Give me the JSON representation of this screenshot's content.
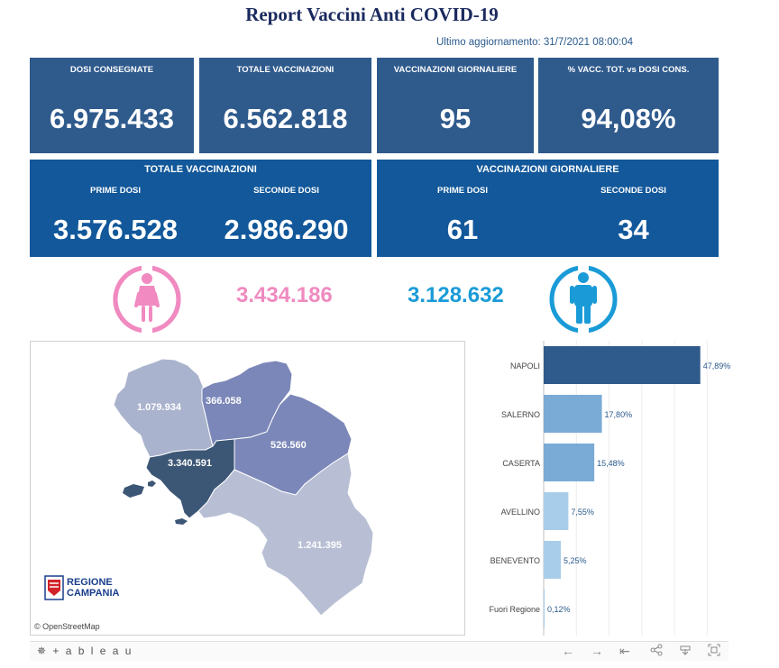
{
  "header": {
    "title": "Report Vaccini Anti COVID-19",
    "updated": "Ultimo aggiornamento: 31/7/2021  08:00:04"
  },
  "kpis": [
    {
      "label": "DOSI  CONSEGNATE",
      "value": "6.975.433"
    },
    {
      "label": "TOTALE VACCINAZIONI",
      "value": "6.562.818"
    },
    {
      "label": "VACCINAZIONI GIORNALIERE",
      "value": "95"
    },
    {
      "label": "% VACC. TOT. vs DOSI CONS.",
      "value": "94,08%"
    }
  ],
  "totals_panel": {
    "title": "TOTALE VACCINAZIONI",
    "first_label": "PRIME DOSI",
    "first_value": "3.576.528",
    "second_label": "SECONDE DOSI",
    "second_value": "2.986.290"
  },
  "daily_panel": {
    "title": "VACCINAZIONI GIORNALIERE",
    "first_label": "PRIME DOSI",
    "first_value": "61",
    "second_label": "SECONDE DOSI",
    "second_value": "34"
  },
  "gender": {
    "female_value": "3.434.186",
    "male_value": "3.128.632",
    "female_color": "#f08ac0",
    "male_color": "#1a9bd7",
    "female_icon": "female-person-icon",
    "male_icon": "male-person-icon"
  },
  "map": {
    "provinces": [
      {
        "name": "caserta",
        "value": "1.079.934",
        "color": "#aab3cd"
      },
      {
        "name": "benevento",
        "value": "366.058",
        "color": "#7b87b8"
      },
      {
        "name": "avellino",
        "value": "526.560",
        "color": "#7b87b8"
      },
      {
        "name": "napoli",
        "value": "3.340.591",
        "color": "#3c5675"
      },
      {
        "name": "salerno",
        "value": "1.241.395",
        "color": "#b8bfd4"
      }
    ],
    "logo_line1": "REGIONE",
    "logo_line2": "CAMPANIA",
    "credit": "© OpenStreetMap"
  },
  "chart_data": {
    "type": "bar",
    "orientation": "horizontal",
    "categories": [
      "NAPOLI",
      "SALERNO",
      "CASERTA",
      "AVELLINO",
      "BENEVENTO",
      "Fuori Regione"
    ],
    "values": [
      47.89,
      17.8,
      15.48,
      7.55,
      5.25,
      0.12
    ],
    "value_labels": [
      "47,89%",
      "17,80%",
      "15,48%",
      "7,55%",
      "5,25%",
      "0,12%"
    ],
    "colors": [
      "#2f5a8c",
      "#7aaad6",
      "#7aaad6",
      "#a8cdea",
      "#a8cdea",
      "#a8cdea"
    ],
    "grid": true
  },
  "footer": {
    "brand": "+ a b l e a u",
    "icons": [
      "undo-icon",
      "redo-icon",
      "revert-icon",
      "share-icon",
      "download-icon",
      "fullscreen-icon"
    ]
  }
}
